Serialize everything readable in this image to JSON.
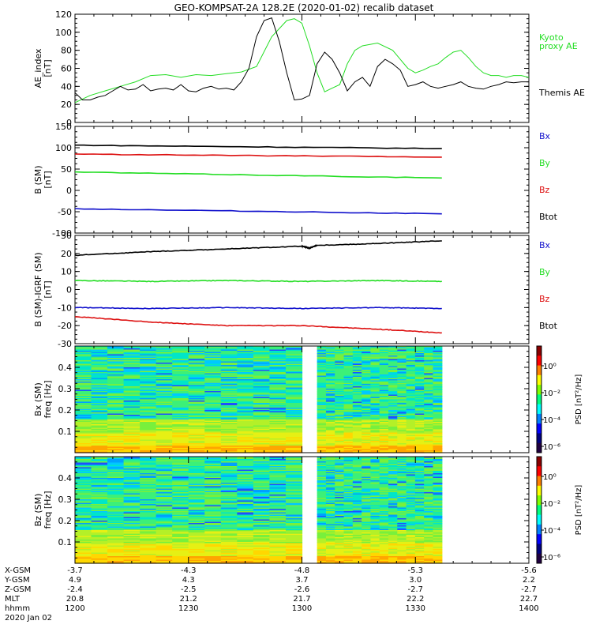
{
  "title": "GEO-KOMPSAT-2A 128.2E (2020-01-02) recalib dataset",
  "colors": {
    "black": "#000000",
    "green": "#22dd22",
    "red": "#dd1111",
    "blue": "#1111cc"
  },
  "chart_data": [
    {
      "type": "line",
      "ylabel": "AE_index\n[nT]",
      "ylim": [
        0,
        120
      ],
      "yticks": [
        0,
        20,
        40,
        60,
        80,
        100,
        120
      ],
      "x_range_min": [
        0,
        120
      ],
      "legend": [
        {
          "name": "Kyoto\nproxy AE",
          "color": "green"
        },
        {
          "name": "Themis AE",
          "color": "black"
        }
      ],
      "series": [
        {
          "name": "Kyoto proxy AE",
          "color": "green",
          "x": [
            0,
            4,
            8,
            12,
            16,
            20,
            24,
            28,
            32,
            36,
            40,
            44,
            48,
            52,
            56,
            58,
            60,
            62,
            64,
            66,
            68,
            70,
            72,
            74,
            76,
            80,
            84,
            88,
            90,
            92,
            94,
            96,
            98,
            100,
            102,
            104,
            106,
            108,
            110,
            112,
            114,
            116,
            118,
            120
          ],
          "y": [
            22,
            30,
            35,
            40,
            45,
            52,
            53,
            50,
            53,
            52,
            54,
            56,
            62,
            95,
            113,
            115,
            110,
            85,
            55,
            34,
            38,
            42,
            65,
            80,
            85,
            88,
            80,
            60,
            55,
            58,
            62,
            65,
            72,
            78,
            80,
            72,
            62,
            55,
            52,
            52,
            50,
            52,
            52,
            50
          ]
        },
        {
          "name": "Themis AE",
          "color": "black",
          "x": [
            0,
            2,
            4,
            6,
            8,
            10,
            12,
            14,
            16,
            18,
            20,
            22,
            24,
            26,
            28,
            30,
            32,
            34,
            36,
            38,
            40,
            42,
            44,
            46,
            48,
            50,
            52,
            54,
            56,
            58,
            60,
            62,
            64,
            66,
            68,
            70,
            72,
            74,
            76,
            78,
            80,
            82,
            84,
            86,
            88,
            90,
            92,
            94,
            96,
            98,
            100,
            102,
            104,
            106,
            108,
            110,
            112,
            114,
            116,
            118,
            120
          ],
          "y": [
            33,
            25,
            25,
            28,
            30,
            35,
            40,
            36,
            37,
            42,
            35,
            37,
            38,
            36,
            42,
            35,
            34,
            38,
            40,
            37,
            38,
            36,
            45,
            60,
            95,
            113,
            116,
            90,
            55,
            25,
            26,
            30,
            65,
            78,
            70,
            55,
            35,
            45,
            50,
            40,
            62,
            70,
            65,
            58,
            40,
            42,
            45,
            40,
            38,
            40,
            42,
            45,
            40,
            38,
            37,
            40,
            42,
            45,
            44,
            45,
            45
          ]
        }
      ]
    },
    {
      "type": "line",
      "ylabel": "B (SM)\n[nT]",
      "ylim": [
        -100,
        150
      ],
      "yticks": [
        -100,
        -50,
        0,
        50,
        100,
        150
      ],
      "x_range_min": [
        0,
        120
      ],
      "legend": [
        {
          "name": "Bx",
          "color": "blue"
        },
        {
          "name": "By",
          "color": "green"
        },
        {
          "name": "Bz",
          "color": "red"
        },
        {
          "name": "Btot",
          "color": "black"
        }
      ],
      "series": [
        {
          "name": "Btot",
          "color": "black",
          "x": [
            0,
            97
          ],
          "y": [
            106,
            98
          ]
        },
        {
          "name": "Bz",
          "color": "red",
          "x": [
            0,
            97
          ],
          "y": [
            85,
            78
          ]
        },
        {
          "name": "By",
          "color": "green",
          "x": [
            0,
            97
          ],
          "y": [
            43,
            29
          ]
        },
        {
          "name": "Bx",
          "color": "blue",
          "x": [
            0,
            97
          ],
          "y": [
            -43,
            -55
          ]
        }
      ]
    },
    {
      "type": "line",
      "ylabel": "B (SM)-IGRF (SM)\n[nT]",
      "ylim": [
        -30,
        30
      ],
      "yticks": [
        -30,
        -20,
        -10,
        0,
        10,
        20,
        30
      ],
      "x_range_min": [
        0,
        120
      ],
      "legend": [
        {
          "name": "Bx",
          "color": "blue"
        },
        {
          "name": "By",
          "color": "green"
        },
        {
          "name": "Bz",
          "color": "red"
        },
        {
          "name": "Btot",
          "color": "black"
        }
      ],
      "series": [
        {
          "name": "Btot",
          "color": "black",
          "x": [
            0,
            20,
            40,
            60,
            62,
            64,
            80,
            97
          ],
          "y": [
            19,
            21,
            22.5,
            24,
            23,
            24.5,
            25.5,
            27
          ]
        },
        {
          "name": "By",
          "color": "green",
          "x": [
            0,
            20,
            40,
            60,
            80,
            97
          ],
          "y": [
            5,
            4.5,
            5,
            4.5,
            5,
            4.5
          ]
        },
        {
          "name": "Bx",
          "color": "blue",
          "x": [
            0,
            20,
            40,
            60,
            80,
            97
          ],
          "y": [
            -10,
            -10.5,
            -10,
            -10.5,
            -10,
            -10.5
          ]
        },
        {
          "name": "Bz",
          "color": "red",
          "x": [
            0,
            20,
            40,
            60,
            80,
            97
          ],
          "y": [
            -15,
            -18,
            -20,
            -20,
            -22,
            -24
          ]
        }
      ]
    },
    {
      "type": "heatmap",
      "ylabel": "Bx (SM)\nfreq [Hz]",
      "ylim": [
        0,
        0.5
      ],
      "yticks": [
        0.1,
        0.2,
        0.3,
        0.4
      ],
      "x_range_min": [
        0,
        120
      ],
      "data_gaps_min": [
        [
          0,
          97
        ],
        [
          60,
          64
        ]
      ],
      "colorbar": {
        "label": "PSD [nT²/Hz]",
        "ticks": [
          "10⁰",
          "10⁻²",
          "10⁻⁴",
          "10⁻⁶"
        ]
      }
    },
    {
      "type": "heatmap",
      "ylabel": "Bz (SM)\nfreq [Hz]",
      "ylim": [
        0,
        0.5
      ],
      "yticks": [
        0.1,
        0.2,
        0.3,
        0.4
      ],
      "x_range_min": [
        0,
        120
      ],
      "data_gaps_min": [
        [
          0,
          97
        ],
        [
          60,
          64
        ]
      ],
      "colorbar": {
        "label": "PSD [nT²/Hz]",
        "ticks": [
          "10⁰",
          "10⁻²",
          "10⁻⁴",
          "10⁻⁶"
        ]
      }
    }
  ],
  "ephemeris": {
    "row_labels": [
      "X-GSM",
      "Y-GSM",
      "Z-GSM",
      "MLT",
      "hhmm",
      "2020 Jan 02"
    ],
    "columns": [
      {
        "x_min": 0,
        "values": [
          "-3.7",
          "4.9",
          "-2.4",
          "20.8",
          "1200"
        ]
      },
      {
        "x_min": 30,
        "values": [
          "-4.3",
          "4.3",
          "-2.5",
          "21.2",
          "1230"
        ]
      },
      {
        "x_min": 60,
        "values": [
          "-4.8",
          "3.7",
          "-2.6",
          "21.7",
          "1300"
        ]
      },
      {
        "x_min": 90,
        "values": [
          "-5.3",
          "3.0",
          "-2.7",
          "22.2",
          "1330"
        ]
      },
      {
        "x_min": 120,
        "values": [
          "-5.6",
          "2.2",
          "-2.7",
          "22.7",
          "1400"
        ]
      }
    ]
  }
}
